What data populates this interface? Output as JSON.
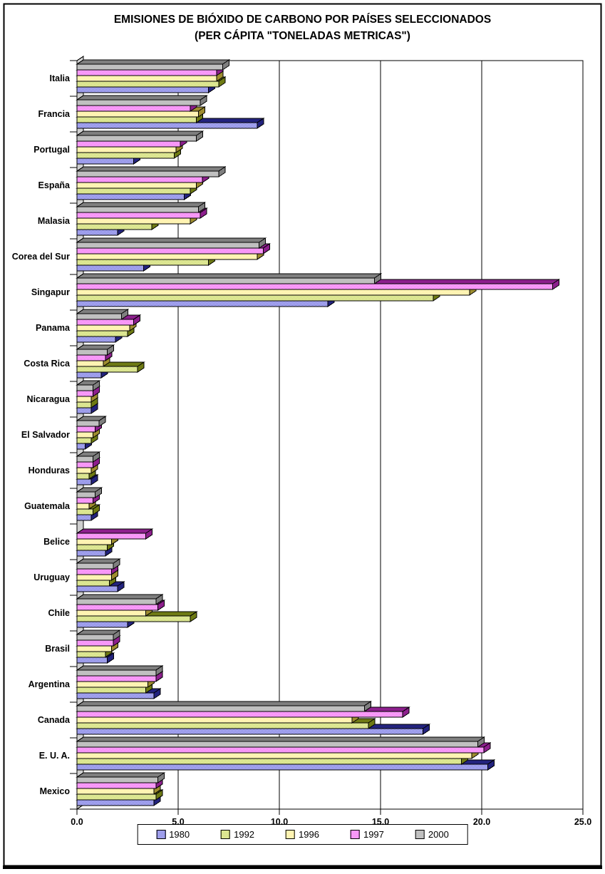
{
  "title": {
    "line1": "EMISIONES DE BIÓXIDO DE CARBONO POR PAÍSES SELECCIONADOS",
    "line2": "(PER CÁPITA \"TONELADAS METRICAS\")"
  },
  "chart_data": {
    "type": "bar",
    "orientation": "horizontal",
    "title": "EMISIONES DE BIÓXIDO DE CARBONO POR PAÍSES SELECCIONADOS (PER CÁPITA \"TONELADAS METRICAS\")",
    "categories": [
      "Italia",
      "Francia",
      "Portugal",
      "España",
      "Malasia",
      "Corea del Sur",
      "Singapur",
      "Panama",
      "Costa Rica",
      "Nicaragua",
      "El Salvador",
      "Honduras",
      "Guatemala",
      "Belice",
      "Uruguay",
      "Chile",
      "Brasil",
      "Argentina",
      "Canada",
      "E. U. A.",
      "Mexico"
    ],
    "row_order_top_to_bottom": [
      "2000",
      "1997",
      "1996",
      "1992",
      "1980"
    ],
    "series": [
      {
        "name": "1980",
        "fill_style": "checker",
        "color": "#3c3cd8",
        "dark": "#23237e",
        "values": [
          6.5,
          8.9,
          2.8,
          5.3,
          2.0,
          3.3,
          12.4,
          1.9,
          1.2,
          0.7,
          0.4,
          0.7,
          0.7,
          1.4,
          2.0,
          2.5,
          1.5,
          3.8,
          17.1,
          20.3,
          3.8
        ]
      },
      {
        "name": "1992",
        "fill_style": "checker",
        "color": "#b8cc22",
        "dark": "#6e7a14",
        "values": [
          7.0,
          5.9,
          4.8,
          5.6,
          3.7,
          6.5,
          17.6,
          2.5,
          3.0,
          0.7,
          0.7,
          0.6,
          0.8,
          1.5,
          1.6,
          5.6,
          1.4,
          3.4,
          14.4,
          19.0,
          3.9
        ]
      },
      {
        "name": "1996",
        "fill_style": "checker",
        "color": "#ffe866",
        "dark": "#9e8d2f",
        "values": [
          6.9,
          6.0,
          4.9,
          5.9,
          5.6,
          8.9,
          19.4,
          2.6,
          1.3,
          0.7,
          0.8,
          0.7,
          0.6,
          1.7,
          1.7,
          3.4,
          1.7,
          3.5,
          13.6,
          19.5,
          3.8
        ]
      },
      {
        "name": "1997",
        "fill_style": "checker",
        "color": "#f030f0",
        "dark": "#8d1f8d",
        "values": [
          6.9,
          5.6,
          5.1,
          6.2,
          6.1,
          9.2,
          23.5,
          2.8,
          1.4,
          0.8,
          0.9,
          0.8,
          0.8,
          3.4,
          1.7,
          4.0,
          1.8,
          3.9,
          16.1,
          20.1,
          3.9
        ]
      },
      {
        "name": "2000",
        "fill_style": "solid",
        "color": "#c0c0c0",
        "dark": "#7f7f7f",
        "values": [
          7.2,
          6.1,
          5.9,
          7.0,
          6.0,
          9.0,
          14.7,
          2.2,
          1.5,
          0.8,
          1.1,
          0.8,
          0.9,
          0,
          1.8,
          3.9,
          1.8,
          3.9,
          14.2,
          19.8,
          4.0
        ]
      }
    ],
    "xlim": [
      0,
      25
    ],
    "xticks": [
      "0.0",
      "5.0",
      "10.0",
      "15.0",
      "20.0",
      "25.0"
    ],
    "grid": true,
    "legend_position": "bottom",
    "wall_color": "#cfcfcf",
    "plot_background": "#ffffff"
  }
}
